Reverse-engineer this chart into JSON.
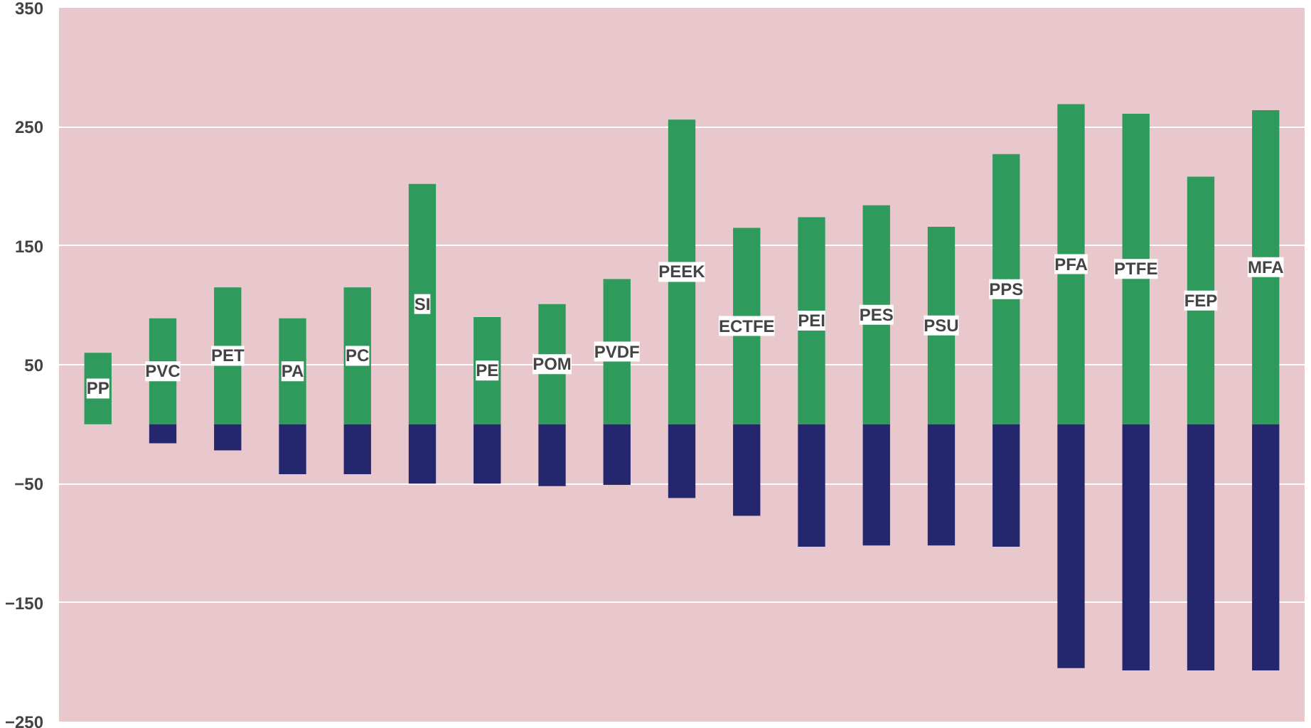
{
  "chart_data": {
    "type": "bar",
    "stacked": true,
    "categories": [
      "PP",
      "PVC",
      "PET",
      "PA",
      "PC",
      "SI",
      "PE",
      "POM",
      "PVDF",
      "PEEK",
      "ECTFE",
      "PEI",
      "PES",
      "PSU",
      "PPS",
      "PFA",
      "PTFE",
      "FEP",
      "MFA"
    ],
    "series": [
      {
        "color": "#2e9a5c",
        "values": [
          60,
          89,
          115,
          89,
          115,
          202,
          90,
          101,
          122,
          256,
          165,
          174,
          184,
          166,
          227,
          269,
          261,
          208,
          264
        ]
      },
      {
        "color": "#24266e",
        "values": [
          0,
          -16,
          -22,
          -42,
          -42,
          -50,
          -50,
          -52,
          -51,
          -62,
          -77,
          -103,
          -102,
          -102,
          -103,
          -205,
          -207,
          -207,
          -207
        ]
      }
    ],
    "ylim": [
      -250,
      350
    ],
    "yticks": [
      -250,
      -150,
      -50,
      50,
      150,
      250,
      350
    ],
    "grid": "y",
    "tick_labels": "y"
  }
}
